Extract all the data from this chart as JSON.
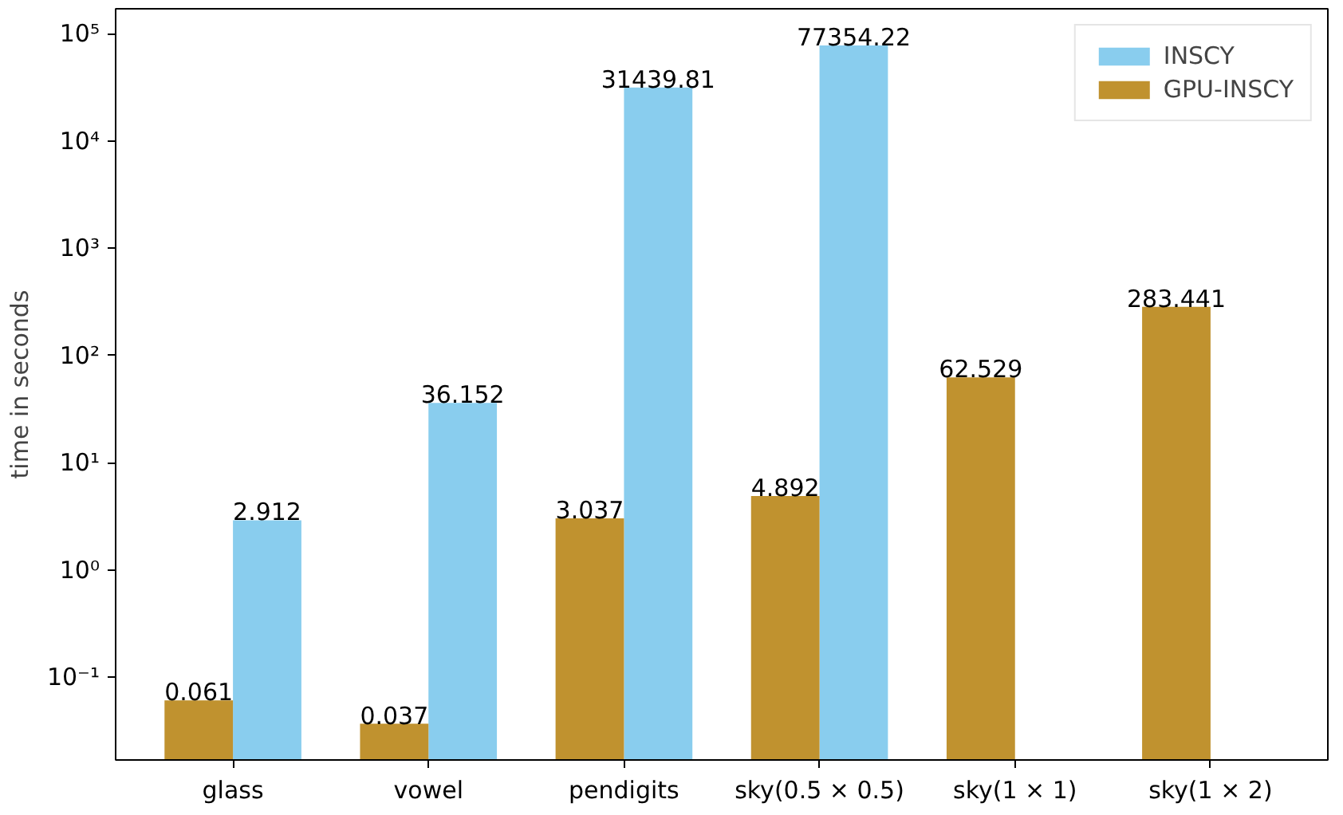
{
  "chart_data": {
    "type": "bar",
    "ylabel": "time in seconds",
    "categories": [
      "glass",
      "vowel",
      "pendigits",
      "sky(0.5 × 0.5)",
      "sky(1 × 1)",
      "sky(1 × 2)"
    ],
    "series": [
      {
        "name": "INSCY",
        "color": "#89cdee",
        "values": [
          2.912,
          36.152,
          31439.81,
          77354.22,
          null,
          null
        ]
      },
      {
        "name": "GPU-INSCY",
        "color": "#c0922f",
        "values": [
          0.061,
          0.037,
          3.037,
          4.892,
          62.529,
          283.441
        ]
      }
    ],
    "log": true,
    "ylim": [
      0.017,
      170000
    ],
    "yticks": [
      {
        "value": 0.1,
        "label": "10⁻¹"
      },
      {
        "value": 1,
        "label": "10⁰"
      },
      {
        "value": 10,
        "label": "10¹"
      },
      {
        "value": 100,
        "label": "10²"
      },
      {
        "value": 1000,
        "label": "10³"
      },
      {
        "value": 10000,
        "label": "10⁴"
      },
      {
        "value": 100000,
        "label": "10⁵"
      }
    ],
    "data_labels": true,
    "grid": false,
    "legend": "top right"
  }
}
